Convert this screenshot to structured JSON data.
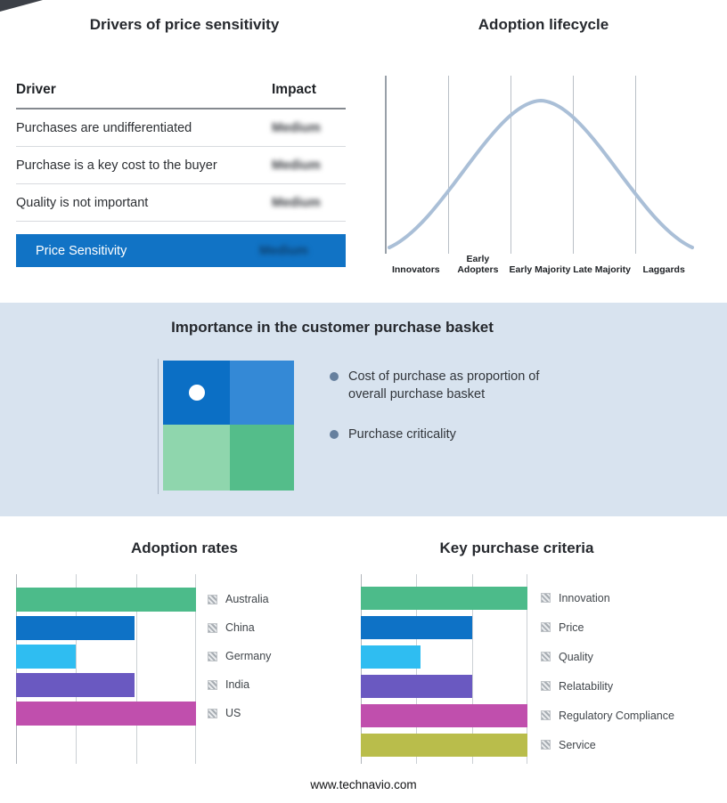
{
  "drivers_table": {
    "title": "Drivers of price sensitivity",
    "header": {
      "driver": "Driver",
      "impact": "Impact"
    },
    "rows": [
      {
        "driver": "Purchases are undifferentiated",
        "impact": "Medium"
      },
      {
        "driver": "Purchase is a key cost to the buyer",
        "impact": "Medium"
      },
      {
        "driver": "Quality is not important",
        "impact": "Medium"
      }
    ],
    "highlight": {
      "label": "Price Sensitivity",
      "impact": "Medium",
      "bg_color": "#1173c5"
    }
  },
  "lifecycle": {
    "title": "Adoption lifecycle",
    "stages": [
      "Innovators",
      "Early Adopters",
      "Early Majority",
      "Late Majority",
      "Laggards"
    ],
    "curve_color": "#aabfd7"
  },
  "basket": {
    "title": "Importance in the customer purchase basket",
    "band_bg": "#d8e3ef",
    "bullets": [
      "Cost of purchase as proportion of overall purchase basket",
      "Purchase criticality"
    ],
    "quadrant_colors": {
      "top_left": "#0b6fc5",
      "top_right": "#3489d6",
      "bottom_left": "#8fd6ad",
      "bottom_right": "#54bd8a"
    }
  },
  "adoption_rates": {
    "title": "Adoption rates",
    "bars": [
      {
        "label": "Australia",
        "percent": 100,
        "color": "#4cbb8a"
      },
      {
        "label": "China",
        "percent": 66,
        "color": "#0e72c6"
      },
      {
        "label": "Germany",
        "percent": 33,
        "color": "#2fbdf1"
      },
      {
        "label": "India",
        "percent": 66,
        "color": "#6a59c1"
      },
      {
        "label": "US",
        "percent": 100,
        "color": "#c04fad"
      }
    ]
  },
  "key_purchase_criteria": {
    "title": "Key purchase criteria",
    "bars": [
      {
        "label": "Innovation",
        "percent": 100,
        "color": "#4cbb8a"
      },
      {
        "label": "Price",
        "percent": 67,
        "color": "#0e72c6"
      },
      {
        "label": "Quality",
        "percent": 36,
        "color": "#2fbdf1"
      },
      {
        "label": "Relatability",
        "percent": 67,
        "color": "#6a59c1"
      },
      {
        "label": "Regulatory Compliance",
        "percent": 100,
        "color": "#c04fad"
      },
      {
        "label": "Service",
        "percent": 100,
        "color": "#b9bd4b"
      }
    ]
  },
  "footer": {
    "text": "www.technavio.com"
  },
  "chart_data": [
    {
      "type": "table",
      "title": "Drivers of price sensitivity",
      "columns": [
        "Driver",
        "Impact"
      ],
      "rows": [
        [
          "Purchases are undifferentiated",
          "Medium"
        ],
        [
          "Purchase is a key cost to the buyer",
          "Medium"
        ],
        [
          "Quality is not important",
          "Medium"
        ],
        [
          "Price Sensitivity",
          "Medium"
        ]
      ]
    },
    {
      "type": "line",
      "title": "Adoption lifecycle",
      "categories": [
        "Innovators",
        "Early Adopters",
        "Early Majority",
        "Late Majority",
        "Laggards"
      ],
      "values": [
        0.08,
        0.55,
        1.0,
        0.55,
        0.08
      ],
      "ylim": [
        0,
        1
      ],
      "grid": true,
      "legend_position": "none"
    },
    {
      "type": "bar",
      "title": "Adoption rates",
      "orientation": "horizontal",
      "categories": [
        "Australia",
        "China",
        "Germany",
        "India",
        "US"
      ],
      "values": [
        100,
        66,
        33,
        66,
        100
      ],
      "xlim": [
        0,
        100
      ],
      "grid": true,
      "legend_position": "right"
    },
    {
      "type": "bar",
      "title": "Key purchase criteria",
      "orientation": "horizontal",
      "categories": [
        "Innovation",
        "Price",
        "Quality",
        "Relatability",
        "Regulatory Compliance",
        "Service"
      ],
      "values": [
        100,
        67,
        36,
        67,
        100,
        100
      ],
      "xlim": [
        0,
        100
      ],
      "grid": true,
      "legend_position": "right"
    }
  ]
}
